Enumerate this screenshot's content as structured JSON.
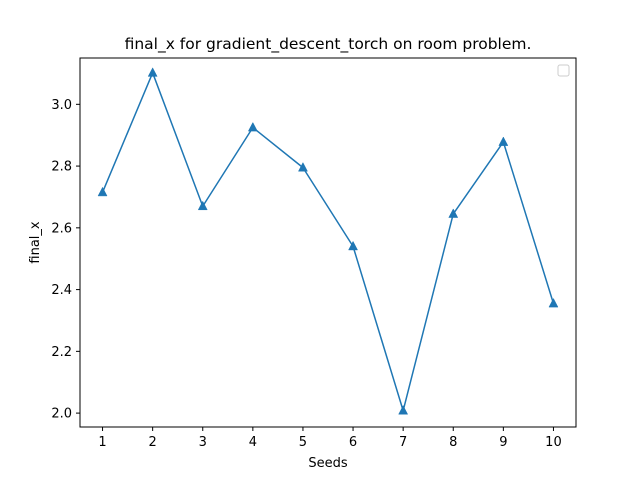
{
  "chart_data": {
    "type": "line",
    "title": "final_x for gradient_descent_torch on room problem.",
    "xlabel": "Seeds",
    "ylabel": "final_x",
    "x": [
      1,
      2,
      3,
      4,
      5,
      6,
      7,
      8,
      9,
      10
    ],
    "x_tick_labels": [
      "1",
      "2",
      "3",
      "4",
      "5",
      "6",
      "7",
      "8",
      "9",
      "10"
    ],
    "y_ticks": [
      2.0,
      2.2,
      2.4,
      2.6,
      2.8,
      3.0
    ],
    "y_tick_labels": [
      "2.0",
      "2.2",
      "2.4",
      "2.6",
      "2.8",
      "3.0"
    ],
    "xlim": [
      0.55,
      10.45
    ],
    "ylim": [
      1.955,
      3.15
    ],
    "series": [
      {
        "values": [
          2.715,
          3.102,
          2.67,
          2.925,
          2.795,
          2.54,
          2.008,
          2.645,
          2.878,
          2.355
        ],
        "color": "#1f77b4",
        "marker": "triangle"
      }
    ],
    "grid": false,
    "legend": "top-right (empty)"
  }
}
